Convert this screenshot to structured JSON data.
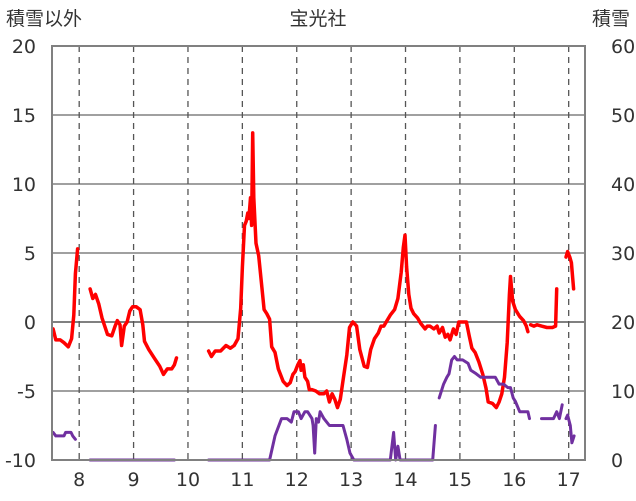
{
  "chart_data": {
    "type": "line",
    "title": "宝光社",
    "left_axis_label": "積雪以外",
    "right_axis_label": "積雪",
    "left_ylim": [
      -10,
      20
    ],
    "left_yticks": [
      -10,
      -5,
      0,
      5,
      10,
      15,
      20
    ],
    "right_ylim": [
      0,
      60
    ],
    "right_yticks": [
      0,
      10,
      20,
      30,
      40,
      50,
      60
    ],
    "xlim": [
      7.5,
      17.3
    ],
    "x_tick_labels": [
      "8",
      "9",
      "10",
      "11",
      "12",
      "13",
      "14",
      "15",
      "16",
      "17"
    ],
    "x_tick_values": [
      8,
      9,
      10,
      11,
      12,
      13,
      14,
      15,
      16,
      17
    ],
    "day_lines": [
      8,
      9,
      10,
      11,
      12,
      13,
      14,
      15,
      16,
      17
    ],
    "grid_dashed": true,
    "zero_line": true,
    "colors": {
      "temp": "#ff0000",
      "snow": "#7030a0",
      "frame": "#808080",
      "grid": "#808080",
      "text": "#333333"
    },
    "series": [
      {
        "axis": "left",
        "color": "#ff0000",
        "segments": [
          [
            [
              7.52,
              -0.5
            ],
            [
              7.57,
              -1.3
            ],
            [
              7.65,
              -1.3
            ],
            [
              7.72,
              -1.5
            ],
            [
              7.8,
              -1.8
            ],
            [
              7.86,
              -1.2
            ],
            [
              7.9,
              0.5
            ],
            [
              7.93,
              3.5
            ],
            [
              7.97,
              5.3
            ]
          ],
          [
            [
              8.2,
              2.4
            ],
            [
              8.25,
              1.7
            ],
            [
              8.3,
              2.0
            ],
            [
              8.36,
              1.3
            ],
            [
              8.42,
              0.3
            ],
            [
              8.52,
              -0.9
            ],
            [
              8.6,
              -1.0
            ],
            [
              8.66,
              -0.3
            ],
            [
              8.7,
              0.1
            ],
            [
              8.75,
              -0.2
            ],
            [
              8.78,
              -1.7
            ],
            [
              8.83,
              -0.3
            ],
            [
              8.88,
              0.0
            ],
            [
              8.93,
              0.8
            ],
            [
              8.98,
              1.1
            ],
            [
              9.05,
              1.1
            ],
            [
              9.12,
              0.9
            ],
            [
              9.17,
              -0.2
            ],
            [
              9.2,
              -1.4
            ],
            [
              9.28,
              -2.0
            ],
            [
              9.38,
              -2.6
            ],
            [
              9.48,
              -3.2
            ],
            [
              9.55,
              -3.8
            ],
            [
              9.62,
              -3.4
            ],
            [
              9.7,
              -3.4
            ],
            [
              9.75,
              -3.1
            ],
            [
              9.79,
              -2.6
            ]
          ],
          [
            [
              10.38,
              -2.1
            ],
            [
              10.43,
              -2.5
            ],
            [
              10.5,
              -2.1
            ],
            [
              10.6,
              -2.1
            ],
            [
              10.7,
              -1.7
            ],
            [
              10.78,
              -1.9
            ],
            [
              10.85,
              -1.7
            ],
            [
              10.92,
              -1.2
            ],
            [
              10.97,
              1.0
            ],
            [
              11.0,
              4.0
            ],
            [
              11.04,
              7.0
            ],
            [
              11.07,
              7.3
            ],
            [
              11.1,
              7.9
            ],
            [
              11.12,
              7.5
            ],
            [
              11.15,
              9.0
            ],
            [
              11.17,
              7.0
            ],
            [
              11.19,
              13.7
            ],
            [
              11.21,
              9.0
            ],
            [
              11.25,
              5.7
            ],
            [
              11.3,
              4.8
            ],
            [
              11.36,
              2.5
            ],
            [
              11.4,
              0.9
            ],
            [
              11.45,
              0.6
            ],
            [
              11.5,
              0.2
            ],
            [
              11.54,
              -1.8
            ],
            [
              11.6,
              -2.2
            ],
            [
              11.66,
              -3.4
            ],
            [
              11.75,
              -4.3
            ],
            [
              11.82,
              -4.6
            ],
            [
              11.88,
              -4.4
            ],
            [
              11.93,
              -3.8
            ],
            [
              11.97,
              -3.6
            ],
            [
              12.02,
              -3.1
            ],
            [
              12.06,
              -2.8
            ],
            [
              12.08,
              -3.5
            ],
            [
              12.12,
              -3.1
            ],
            [
              12.15,
              -4.0
            ],
            [
              12.2,
              -4.3
            ],
            [
              12.23,
              -4.9
            ],
            [
              12.28,
              -4.9
            ],
            [
              12.35,
              -5.0
            ],
            [
              12.42,
              -5.2
            ],
            [
              12.5,
              -5.2
            ],
            [
              12.55,
              -5.0
            ],
            [
              12.6,
              -5.8
            ],
            [
              12.65,
              -5.2
            ],
            [
              12.7,
              -5.6
            ],
            [
              12.75,
              -6.2
            ],
            [
              12.8,
              -5.6
            ],
            [
              12.86,
              -4.0
            ],
            [
              12.92,
              -2.4
            ],
            [
              12.97,
              -0.4
            ],
            [
              13.03,
              0.0
            ],
            [
              13.1,
              -0.3
            ],
            [
              13.16,
              -2.0
            ],
            [
              13.24,
              -3.2
            ],
            [
              13.3,
              -3.3
            ],
            [
              13.36,
              -2.0
            ],
            [
              13.43,
              -1.2
            ],
            [
              13.5,
              -0.8
            ],
            [
              13.55,
              -0.3
            ],
            [
              13.6,
              -0.3
            ],
            [
              13.66,
              0.1
            ],
            [
              13.72,
              0.5
            ],
            [
              13.8,
              0.9
            ],
            [
              13.86,
              1.7
            ],
            [
              13.92,
              3.6
            ],
            [
              13.96,
              5.4
            ],
            [
              13.99,
              6.3
            ],
            [
              14.02,
              4.0
            ],
            [
              14.06,
              2.0
            ],
            [
              14.1,
              1.0
            ],
            [
              14.15,
              0.6
            ],
            [
              14.22,
              0.3
            ],
            [
              14.28,
              -0.1
            ],
            [
              14.32,
              -0.3
            ],
            [
              14.36,
              -0.5
            ],
            [
              14.4,
              -0.3
            ],
            [
              14.45,
              -0.3
            ],
            [
              14.52,
              -0.5
            ],
            [
              14.58,
              -0.3
            ],
            [
              14.62,
              -0.8
            ],
            [
              14.68,
              -0.4
            ],
            [
              14.73,
              -1.1
            ],
            [
              14.78,
              -0.9
            ],
            [
              14.82,
              -1.3
            ],
            [
              14.88,
              -0.5
            ],
            [
              14.93,
              -0.9
            ],
            [
              14.98,
              0.0
            ],
            [
              15.05,
              0.0
            ],
            [
              15.12,
              0.0
            ],
            [
              15.17,
              -1.0
            ],
            [
              15.22,
              -1.9
            ],
            [
              15.28,
              -2.2
            ],
            [
              15.35,
              -2.9
            ],
            [
              15.42,
              -3.8
            ],
            [
              15.48,
              -4.8
            ],
            [
              15.52,
              -5.8
            ],
            [
              15.6,
              -5.9
            ],
            [
              15.67,
              -6.2
            ],
            [
              15.72,
              -5.8
            ],
            [
              15.77,
              -5.2
            ],
            [
              15.82,
              -4.0
            ],
            [
              15.87,
              -1.5
            ],
            [
              15.91,
              2.0
            ],
            [
              15.93,
              3.3
            ],
            [
              15.97,
              1.5
            ],
            [
              16.02,
              0.9
            ],
            [
              16.1,
              0.4
            ],
            [
              16.17,
              0.1
            ],
            [
              16.22,
              -0.3
            ],
            [
              16.25,
              -0.7
            ]
          ],
          [
            [
              16.3,
              -0.2
            ],
            [
              16.36,
              -0.3
            ],
            [
              16.42,
              -0.2
            ],
            [
              16.5,
              -0.3
            ],
            [
              16.6,
              -0.4
            ],
            [
              16.7,
              -0.4
            ],
            [
              16.76,
              -0.3
            ],
            [
              16.78,
              2.4
            ]
          ],
          [
            [
              16.95,
              4.7
            ],
            [
              16.98,
              5.1
            ],
            [
              17.02,
              4.7
            ],
            [
              17.05,
              4.3
            ],
            [
              17.09,
              2.4
            ]
          ]
        ]
      },
      {
        "axis": "right",
        "color": "#7030a0",
        "segments": [
          [
            [
              7.52,
              4.0
            ],
            [
              7.57,
              3.5
            ],
            [
              7.65,
              3.5
            ],
            [
              7.72,
              3.5
            ],
            [
              7.75,
              4.0
            ],
            [
              7.85,
              4.0
            ],
            [
              7.88,
              3.5
            ],
            [
              7.93,
              3.0
            ]
          ],
          [
            [
              8.2,
              0.0
            ],
            [
              9.75,
              0.0
            ]
          ],
          [
            [
              10.38,
              0.0
            ],
            [
              11.5,
              0.0
            ],
            [
              11.6,
              3.5
            ],
            [
              11.72,
              6.0
            ],
            [
              11.82,
              6.0
            ],
            [
              11.9,
              5.5
            ],
            [
              11.95,
              7.0
            ],
            [
              12.03,
              7.0
            ],
            [
              12.08,
              6.0
            ],
            [
              12.15,
              7.0
            ],
            [
              12.2,
              7.0
            ],
            [
              12.28,
              6.0
            ],
            [
              12.3,
              5.0
            ],
            [
              12.33,
              1.0
            ],
            [
              12.36,
              6.0
            ],
            [
              12.4,
              5.5
            ],
            [
              12.43,
              7.0
            ],
            [
              12.5,
              6.0
            ],
            [
              12.6,
              5.0
            ],
            [
              12.75,
              5.0
            ],
            [
              12.85,
              5.0
            ],
            [
              12.92,
              3.0
            ],
            [
              12.98,
              1.0
            ],
            [
              13.05,
              0.0
            ],
            [
              13.72,
              0.0
            ],
            [
              13.78,
              4.0
            ],
            [
              13.82,
              0.0
            ],
            [
              13.86,
              2.0
            ],
            [
              13.9,
              0.0
            ],
            [
              14.5,
              0.0
            ],
            [
              14.55,
              5.0
            ]
          ],
          [
            [
              14.62,
              9.0
            ],
            [
              14.7,
              11.0
            ],
            [
              14.76,
              12.0
            ],
            [
              14.8,
              12.5
            ],
            [
              14.85,
              14.5
            ],
            [
              14.9,
              15.0
            ],
            [
              14.95,
              14.5
            ],
            [
              15.05,
              14.5
            ],
            [
              15.15,
              14.0
            ],
            [
              15.2,
              13.0
            ],
            [
              15.3,
              12.5
            ],
            [
              15.38,
              12.0
            ],
            [
              15.5,
              12.0
            ],
            [
              15.65,
              12.0
            ],
            [
              15.72,
              11.0
            ],
            [
              15.8,
              11.0
            ],
            [
              15.88,
              10.5
            ],
            [
              15.93,
              10.5
            ],
            [
              15.98,
              9.0
            ],
            [
              16.02,
              8.5
            ],
            [
              16.1,
              7.0
            ],
            [
              16.25,
              7.0
            ],
            [
              16.28,
              6.0
            ]
          ],
          [
            [
              16.5,
              6.0
            ],
            [
              16.72,
              6.0
            ],
            [
              16.78,
              7.0
            ],
            [
              16.83,
              6.0
            ],
            [
              16.88,
              8.0
            ]
          ],
          [
            [
              16.95,
              6.0
            ],
            [
              16.98,
              6.5
            ],
            [
              17.03,
              5.0
            ],
            [
              17.06,
              2.5
            ],
            [
              17.1,
              3.5
            ]
          ]
        ]
      }
    ]
  }
}
